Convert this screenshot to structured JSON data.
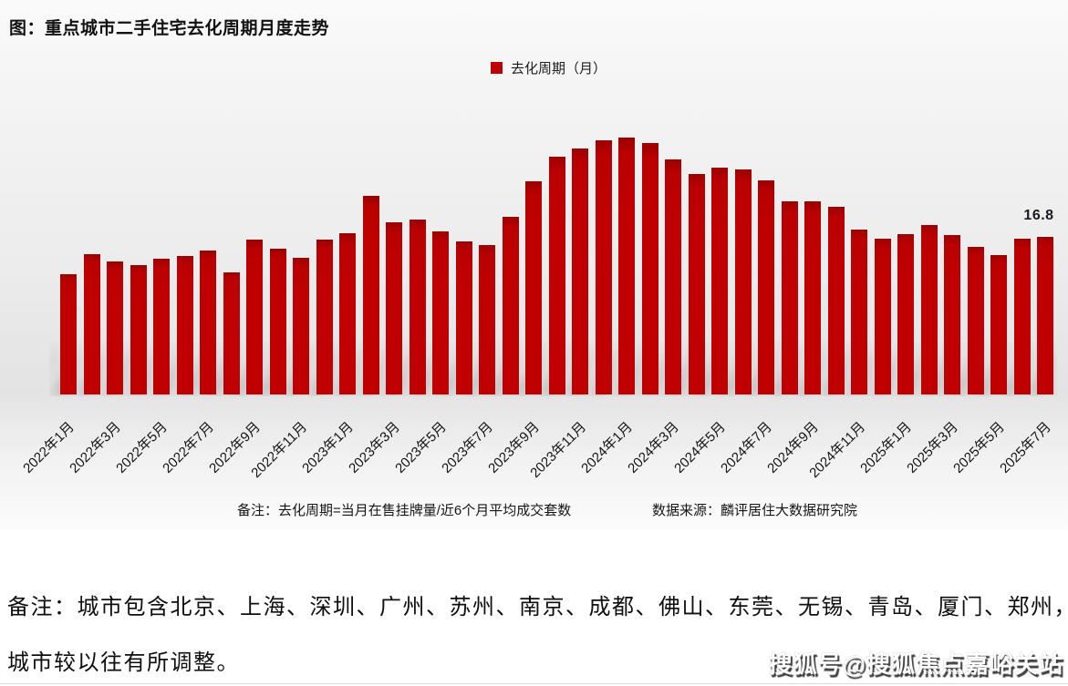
{
  "page": {
    "note_line1": "备注：城市包含北京、上海、深圳、广州、苏州、南京、成都、佛山、东莞、无锡、青岛、厦门、郑州，",
    "note_line2": "城市较以往有所调整。",
    "watermark": "搜狐号@搜狐焦点嘉峪关站"
  },
  "chart": {
    "title": "图：重点城市二手住宅去化周期月度走势",
    "legend_label": "去化周期（月）",
    "footnote_left": "备注：去化周期=当月在售挂牌量/近6个月平均成交套数",
    "footnote_right": "数据来源：麟评居住大数据研究院",
    "last_value_label": "16.8",
    "bar_color": "#c00000"
  },
  "chart_data": {
    "type": "bar",
    "title": "图：重点城市二手住宅去化周期月度走势",
    "series_name": "去化周期（月）",
    "categories": [
      "2022年1月",
      "2022年2月",
      "2022年3月",
      "2022年4月",
      "2022年5月",
      "2022年6月",
      "2022年7月",
      "2022年8月",
      "2022年9月",
      "2022年10月",
      "2022年11月",
      "2022年12月",
      "2023年1月",
      "2023年2月",
      "2023年3月",
      "2023年4月",
      "2023年5月",
      "2023年6月",
      "2023年7月",
      "2023年8月",
      "2023年9月",
      "2023年10月",
      "2023年11月",
      "2023年12月",
      "2024年1月",
      "2024年2月",
      "2024年3月",
      "2024年4月",
      "2024年5月",
      "2024年6月",
      "2024年7月",
      "2024年8月",
      "2024年9月",
      "2024年10月",
      "2024年11月",
      "2024年12月",
      "2025年1月",
      "2025年2月",
      "2025年3月",
      "2025年4月",
      "2025年5月",
      "2025年6月",
      "2025年7月"
    ],
    "values": [
      12.8,
      15.0,
      14.2,
      13.8,
      14.5,
      14.8,
      15.3,
      13.0,
      16.5,
      15.5,
      14.6,
      16.5,
      17.2,
      21.2,
      18.4,
      18.6,
      17.4,
      16.3,
      15.9,
      18.9,
      22.7,
      25.3,
      26.2,
      27.1,
      27.4,
      26.8,
      25.1,
      23.5,
      24.2,
      24.0,
      22.8,
      20.6,
      20.6,
      20.0,
      17.6,
      16.6,
      17.1,
      18.1,
      17.0,
      15.7,
      14.9,
      16.6,
      16.8
    ],
    "x_tick_labels": [
      "2022年1月",
      "2022年3月",
      "2022年5月",
      "2022年7月",
      "2022年9月",
      "2022年11月",
      "2023年1月",
      "2023年3月",
      "2023年5月",
      "2023年7月",
      "2023年9月",
      "2023年11月",
      "2024年1月",
      "2024年3月",
      "2024年5月",
      "2024年7月",
      "2024年9月",
      "2024年11月",
      "2025年1月",
      "2025年3月",
      "2025年5月",
      "2025年7月"
    ],
    "ylim": [
      0,
      30
    ],
    "grid": false,
    "legend_position": "top-center",
    "annotations": [
      {
        "category": "2025年7月",
        "text": "16.8"
      }
    ]
  }
}
